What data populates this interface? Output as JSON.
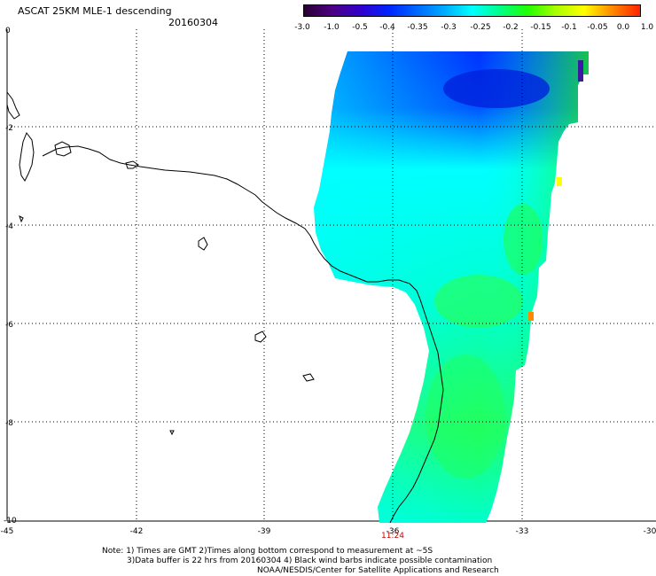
{
  "header": {
    "title": "ASCAT 25KM MLE-1 descending",
    "date": "20160304"
  },
  "colorbar": {
    "labels": [
      "-3.0",
      "-1.0",
      "-0.5",
      "-0.4",
      "-0.35",
      "-0.3",
      "-0.25",
      "-0.2",
      "-0.15",
      "-0.1",
      "-0.05",
      "0.0",
      "1.0"
    ],
    "colors": [
      "#2a0033",
      "#4b0082",
      "#3300cc",
      "#0022ff",
      "#0066ff",
      "#00aaff",
      "#00ffff",
      "#00ff88",
      "#22ff00",
      "#aaff00",
      "#ffff00",
      "#ff8800",
      "#ff2200"
    ]
  },
  "map": {
    "x_ticks": [
      "-45",
      "-42",
      "-39",
      "-36",
      "-33",
      "-30"
    ],
    "y_ticks": [
      "0",
      "-2",
      "-4",
      "-6",
      "-8",
      "-10"
    ],
    "time_label": "11:24",
    "land_outline_color": "#000000",
    "swath_color_range": [
      "#0033ff",
      "#00ffff",
      "#22ff00"
    ]
  },
  "footer": {
    "line1": "Note: 1) Times are GMT 2)Times along bottom correspond to measurement at ~5S",
    "line2": "3)Data buffer is 22 hrs from 20160304 4) Black wind barbs indicate possible contamination",
    "line3": "NOAA/NESDIS/Center for Satellite Applications and Research"
  }
}
